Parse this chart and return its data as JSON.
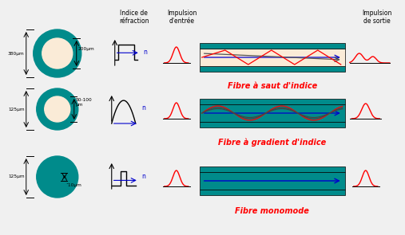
{
  "bg_color": "#f0f0f0",
  "teal_color": "#008B8B",
  "cream_color": "#FAEBD7",
  "red_color": "#ff0000",
  "blue_color": "#0000cc",
  "dark_color": "#333333",
  "title1": "Fibre à saut d'indice",
  "title2": "Fibre à gradient d'indice",
  "title3": "Fibre monomode",
  "header_indice": "Indice de\nréfraction",
  "header_entree": "Impulsion\nd'entrée",
  "header_sortie": "Impulsion\nde sortie",
  "label_380": "380μm",
  "label_200": "200μm",
  "label_125_1": "125μm",
  "label_50_100": "50-100\nμm",
  "label_125_2": "125μm",
  "label_10": "ˇ10μm",
  "label_n": "n"
}
